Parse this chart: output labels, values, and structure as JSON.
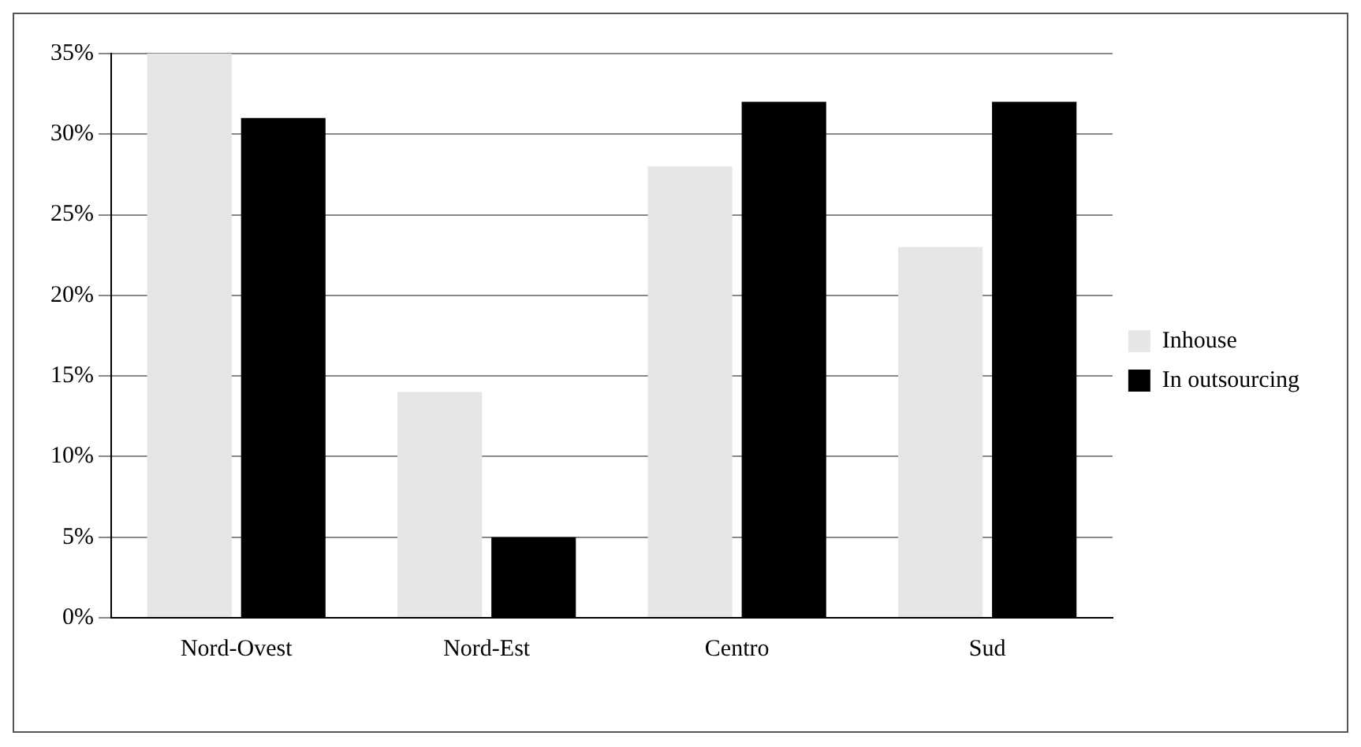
{
  "chart_data": {
    "type": "bar",
    "categories": [
      "Nord-Ovest",
      "Nord-Est",
      "Centro",
      "Sud"
    ],
    "series": [
      {
        "name": "Inhouse",
        "color": "#e6e6e6",
        "values": [
          35,
          14,
          28,
          23
        ]
      },
      {
        "name": "In outsourcing",
        "color": "#000000",
        "values": [
          31,
          5,
          32,
          32
        ]
      }
    ],
    "ylim": [
      0,
      35
    ],
    "yticks": [
      {
        "value": 0,
        "label": "0%"
      },
      {
        "value": 5,
        "label": "5%"
      },
      {
        "value": 10,
        "label": "10%"
      },
      {
        "value": 15,
        "label": "15%"
      },
      {
        "value": 20,
        "label": "20%"
      },
      {
        "value": 25,
        "label": "25%"
      },
      {
        "value": 30,
        "label": "30%"
      },
      {
        "value": 35,
        "label": "35%"
      }
    ],
    "grid": "y",
    "legend": "right"
  }
}
